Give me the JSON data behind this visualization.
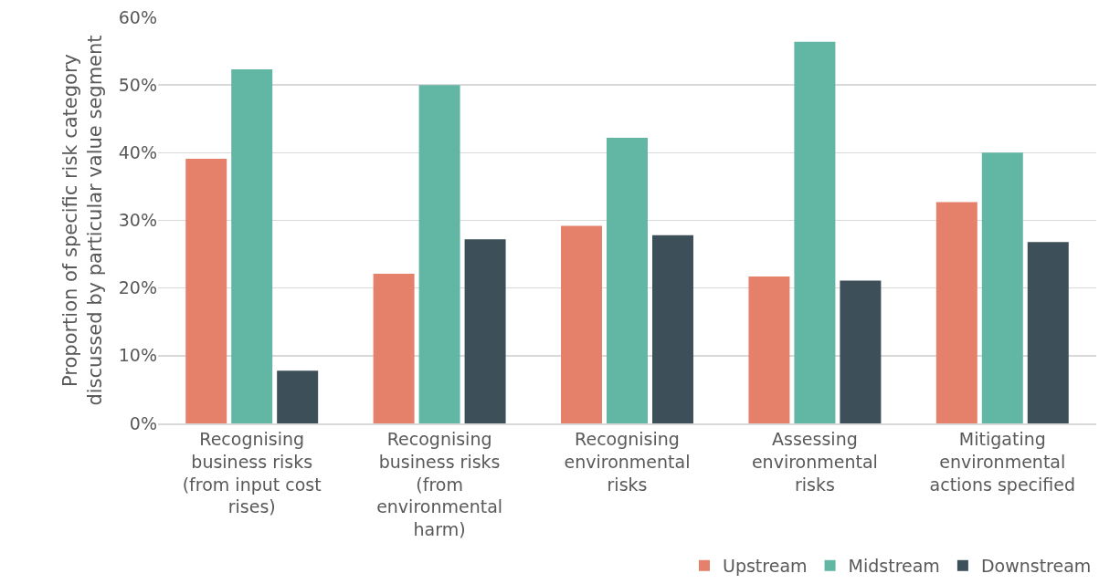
{
  "chart_data": {
    "type": "bar",
    "ylabel": "Proportion of specific risk category discussed by particular value segment",
    "categories": [
      "Recognising business risks (from input cost rises)",
      "Recognising business risks (from environmental harm)",
      "Recognising environmental risks",
      "Assessing environmental risks",
      "Mitigating environmental actions specified"
    ],
    "series": [
      {
        "name": "Upstream",
        "color": "#e5806b",
        "values": [
          39.1,
          22.1,
          29.2,
          21.7,
          32.7
        ]
      },
      {
        "name": "Midstream",
        "color": "#62b6a4",
        "values": [
          52.3,
          50.0,
          42.2,
          56.4,
          40.0
        ]
      },
      {
        "name": "Downstream",
        "color": "#3d4f58",
        "values": [
          7.8,
          27.2,
          27.8,
          21.1,
          26.8
        ]
      }
    ],
    "ylim": [
      0,
      60
    ],
    "yticks": [
      {
        "value": 0,
        "label": "0%"
      },
      {
        "value": 10,
        "label": "10%"
      },
      {
        "value": 20,
        "label": "20%"
      },
      {
        "value": 30,
        "label": "30%"
      },
      {
        "value": 40,
        "label": "40%"
      },
      {
        "value": 50,
        "label": "50%"
      },
      {
        "value": 60,
        "label": "60%"
      }
    ],
    "grid": "y",
    "legend": "bottom right"
  }
}
